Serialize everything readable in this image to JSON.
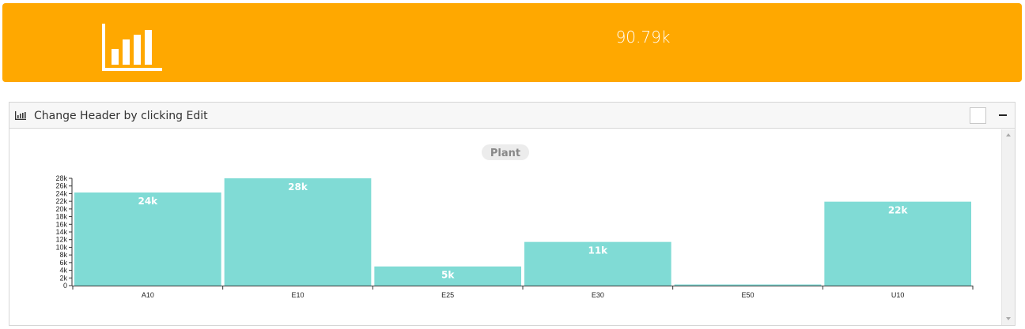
{
  "kpi": {
    "value": "90.79k",
    "icon": "bar-chart-icon",
    "background_color": "#ffa800"
  },
  "widget": {
    "title": "Change Header by clicking Edit",
    "header_icon": "bar-chart-icon"
  },
  "chart_data": {
    "type": "bar",
    "title": "Plant",
    "categories": [
      "A10",
      "E10",
      "E25",
      "E30",
      "E50",
      "U10"
    ],
    "values": [
      24300,
      28000,
      5000,
      11400,
      300,
      21900
    ],
    "data_labels": [
      "24k",
      "28k",
      "5k",
      "11k",
      "",
      "22k"
    ],
    "y_ticks": [
      0,
      2000,
      4000,
      6000,
      8000,
      10000,
      12000,
      14000,
      16000,
      18000,
      20000,
      22000,
      24000,
      26000,
      28000
    ],
    "y_tick_labels": [
      "0",
      "2k",
      "4k",
      "6k",
      "8k",
      "10k",
      "12k",
      "14k",
      "16k",
      "18k",
      "20k",
      "22k",
      "24k",
      "26k",
      "28k"
    ],
    "ylim": [
      0,
      28000
    ],
    "xlabel": "",
    "ylabel": "",
    "bar_color": "#80dbd5",
    "grid": false,
    "legend": "none"
  }
}
